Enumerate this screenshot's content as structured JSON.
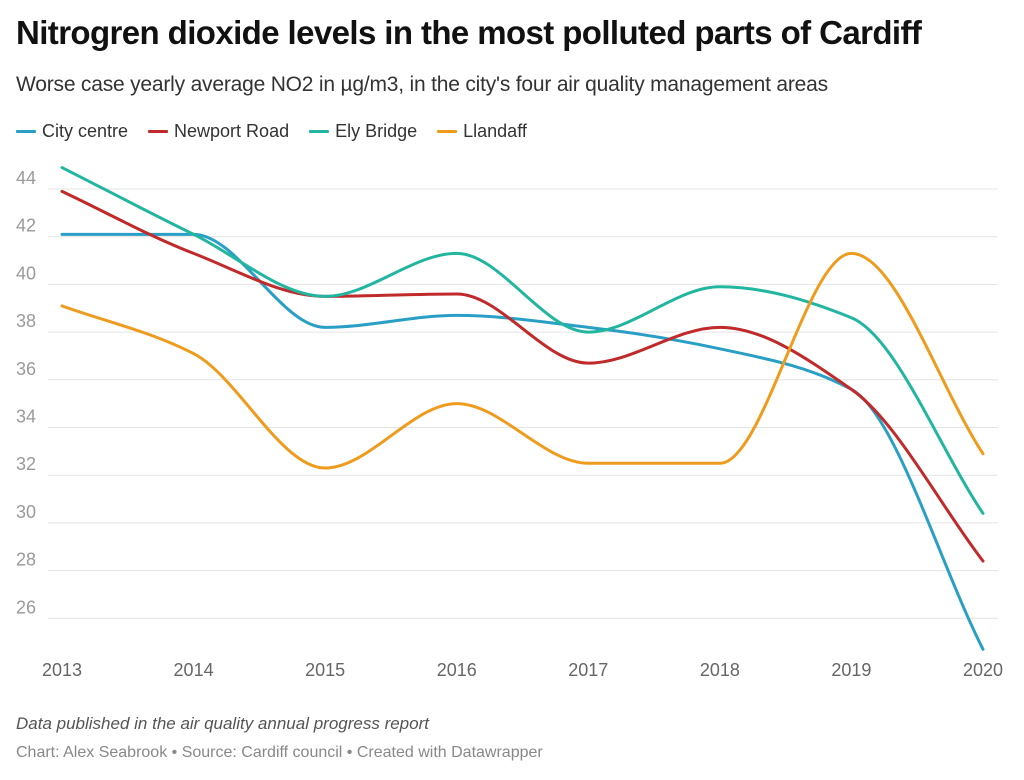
{
  "title": "Nitrogren dioxide levels in the most polluted parts of Cardiff",
  "subtitle": "Worse case yearly average NO2 in µg/m3, in the city's four air quality management areas",
  "notes": "Data published in the air quality annual progress report",
  "byline": "Chart: Alex Seabrook • Source: Cardiff council • Created with Datawrapper",
  "chart_data": {
    "type": "line",
    "title": "Nitrogren dioxide levels in the most polluted parts of Cardiff",
    "subtitle": "Worse case yearly average NO2 in µg/m3, in the city's four air quality management areas",
    "xlabel": "",
    "ylabel": "",
    "x": [
      "2013",
      "2014",
      "2015",
      "2016",
      "2017",
      "2018",
      "2019",
      "2020"
    ],
    "yticks": [
      26,
      28,
      30,
      32,
      34,
      36,
      38,
      40,
      42,
      44
    ],
    "ylim": [
      24.5,
      45
    ],
    "grid": true,
    "legend": "top-left",
    "curve": "smooth",
    "series": [
      {
        "name": "City centre",
        "color": "#2a9fc6",
        "values": [
          42.1,
          42.1,
          38.2,
          38.7,
          38.2,
          37.3,
          35.6,
          24.7
        ]
      },
      {
        "name": "Newport Road",
        "color": "#c02a2a",
        "values": [
          43.9,
          41.3,
          39.5,
          39.6,
          36.7,
          38.2,
          35.6,
          28.4
        ]
      },
      {
        "name": "Ely Bridge",
        "color": "#22b5a0",
        "values": [
          44.9,
          42.1,
          39.5,
          41.3,
          38.0,
          39.9,
          38.6,
          30.4
        ]
      },
      {
        "name": "Llandaff",
        "color": "#ee9b1e",
        "values": [
          39.1,
          37.1,
          32.3,
          35.0,
          32.5,
          32.5,
          41.3,
          32.9
        ]
      }
    ]
  }
}
